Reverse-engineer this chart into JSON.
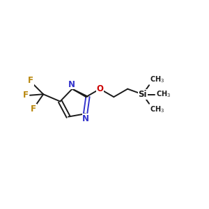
{
  "background_color": "#FFFFFF",
  "bond_color": "#1a1a1a",
  "nitrogen_color": "#3333CC",
  "oxygen_color": "#CC0000",
  "fluorine_color": "#B8860B",
  "silicon_color": "#1a1a1a",
  "figsize": [
    3.0,
    3.0
  ],
  "dpi": 100,
  "xlim": [
    0,
    10
  ],
  "ylim": [
    0,
    10
  ]
}
